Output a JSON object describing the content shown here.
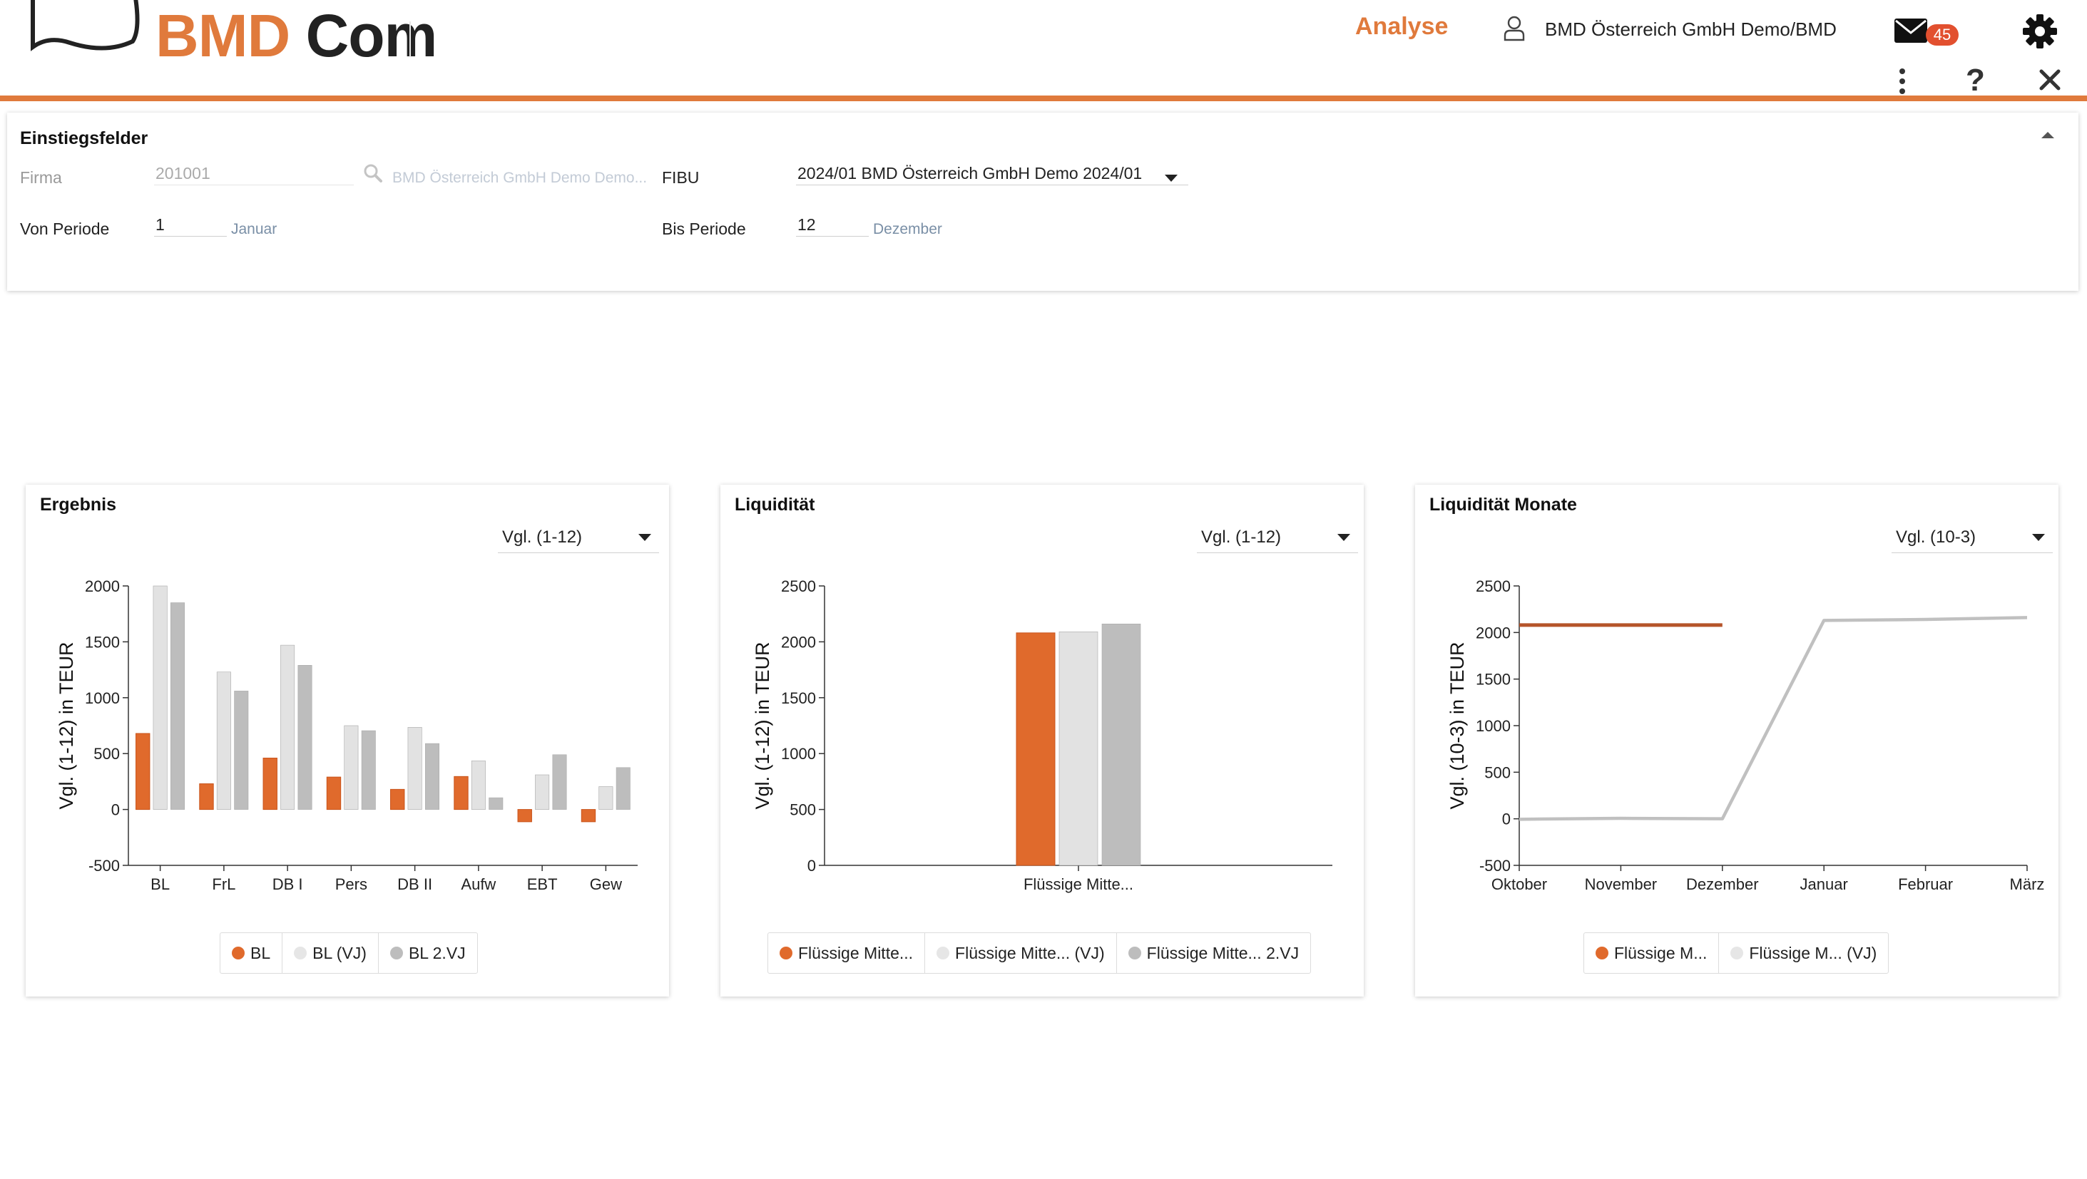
{
  "header": {
    "logo_bmd": "BMD",
    "logo_com": "Com",
    "app_title": "Analyse",
    "user_name": "BMD Österreich GmbH Demo/BMD",
    "mail_count": "45",
    "help_symbol": "?"
  },
  "colors": {
    "accent": "#e07a3c",
    "series_current": "#e06a2c",
    "series_prev": "#e2e2e2",
    "series_prev2": "#bdbdbd",
    "badge": "#e2502f",
    "line_current": "#b5542a"
  },
  "entry": {
    "title": "Einstiegsfelder",
    "firma_label": "Firma",
    "firma_value": "201001",
    "firma_name": "BMD Österreich GmbH Demo Demo...",
    "fibu_label": "FIBU",
    "fibu_value": "2024/01 BMD Österreich GmbH Demo 2024/01",
    "von_label": "Von Periode",
    "von_value": "1",
    "von_month": "Januar",
    "bis_label": "Bis Periode",
    "bis_value": "12",
    "bis_month": "Dezember"
  },
  "cards": [
    {
      "title": "Ergebnis",
      "select": "Vgl. (1-12)",
      "legend": [
        "BL",
        "BL (VJ)",
        "BL 2.VJ"
      ]
    },
    {
      "title": "Liquidität",
      "select": "Vgl. (1-12)",
      "legend": [
        "Flüssige Mitte...",
        "Flüssige Mitte... (VJ)",
        "Flüssige Mitte... 2.VJ"
      ]
    },
    {
      "title": "Liquidität Monate",
      "select": "Vgl. (10-3)",
      "legend": [
        "Flüssige M...",
        "Flüssige M... (VJ)"
      ]
    }
  ],
  "chart_data": [
    {
      "type": "bar",
      "title": "Ergebnis",
      "ylabel": "Vgl. (1-12) in TEUR",
      "xlabel": "",
      "ylim": [
        -500,
        2000
      ],
      "yticks": [
        -500,
        0,
        500,
        1000,
        1500,
        2000
      ],
      "categories": [
        "BL",
        "FrL",
        "DB I",
        "Pers",
        "DB II",
        "Aufw",
        "EBT",
        "Gew"
      ],
      "series": [
        {
          "name": "BL",
          "color": "#e06a2c",
          "values": [
            680,
            230,
            460,
            290,
            180,
            295,
            -110,
            -110
          ]
        },
        {
          "name": "BL (VJ)",
          "color": "#e2e2e2",
          "values": [
            2000,
            1230,
            1470,
            750,
            735,
            435,
            310,
            205
          ]
        },
        {
          "name": "BL 2.VJ",
          "color": "#bdbdbd",
          "values": [
            1850,
            1060,
            1290,
            705,
            590,
            105,
            490,
            375
          ]
        }
      ]
    },
    {
      "type": "bar",
      "title": "Liquidität",
      "ylabel": "Vgl. (1-12) in TEUR",
      "xlabel": "",
      "ylim": [
        0,
        2500
      ],
      "yticks": [
        0,
        500,
        1000,
        1500,
        2000,
        2500
      ],
      "categories": [
        "Flüssige Mitte..."
      ],
      "series": [
        {
          "name": "Flüssige Mitte...",
          "color": "#e06a2c",
          "values": [
            2080
          ]
        },
        {
          "name": "Flüssige Mitte... (VJ)",
          "color": "#e2e2e2",
          "values": [
            2090
          ]
        },
        {
          "name": "Flüssige Mitte... 2.VJ",
          "color": "#bdbdbd",
          "values": [
            2160
          ]
        }
      ]
    },
    {
      "type": "line",
      "title": "Liquidität Monate",
      "ylabel": "Vgl. (10-3) in TEUR",
      "xlabel": "",
      "ylim": [
        -500,
        2500
      ],
      "yticks": [
        -500,
        0,
        500,
        1000,
        1500,
        2000,
        2500
      ],
      "categories": [
        "Oktober",
        "November",
        "Dezember",
        "Januar",
        "Februar",
        "März"
      ],
      "series": [
        {
          "name": "Flüssige M...",
          "color": "#b5542a",
          "values": [
            2080,
            2080,
            2080,
            null,
            null,
            null
          ]
        },
        {
          "name": "Flüssige M... (VJ)",
          "color": "#c0c0c0",
          "values": [
            -5,
            5,
            0,
            2130,
            2140,
            2160
          ]
        }
      ]
    }
  ]
}
